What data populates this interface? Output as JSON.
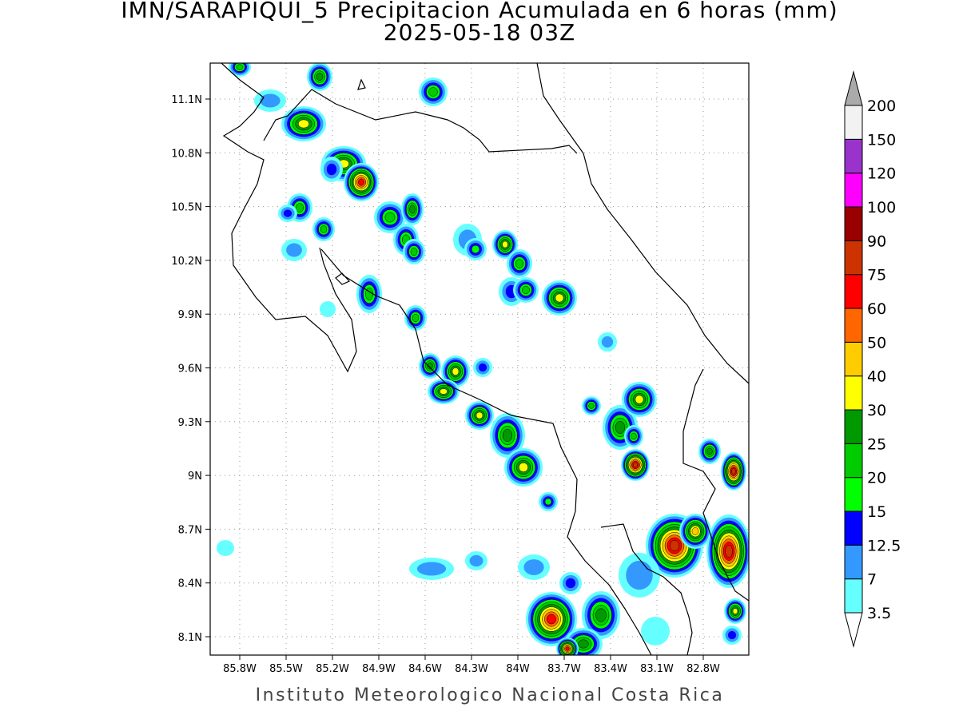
{
  "header": {
    "title": "IMN/SARAPIQUI_5 Precipitacion Acumulada en 6 horas (mm)",
    "subtitle": "2025-05-18 03Z"
  },
  "map": {
    "lat_labels": [
      "11.1N",
      "10.8N",
      "10.5N",
      "10.2N",
      "9.9N",
      "9.6N",
      "9.3N",
      "9N",
      "8.7N",
      "8.4N",
      "8.1N"
    ],
    "lon_labels": [
      "85.8W",
      "85.5W",
      "85.2W",
      "84.9W",
      "84.6W",
      "84.3W",
      "84W",
      "83.7W",
      "83.4W",
      "83.1W",
      "82.8W"
    ]
  },
  "colorbar": {
    "levels": [
      3.5,
      7,
      12.5,
      15,
      20,
      25,
      30,
      40,
      50,
      60,
      75,
      90,
      100,
      120,
      150,
      200
    ],
    "colors": [
      "#66ffff",
      "#3399ff",
      "#0000ff",
      "#00ff00",
      "#00cc00",
      "#009900",
      "#ffff00",
      "#ffcc00",
      "#ff6600",
      "#ff0000",
      "#cc3300",
      "#990000",
      "#ff00ff",
      "#9933cc",
      "#f2f2f2"
    ],
    "under_color": "#ffffff",
    "over_color": "#aaaaaa"
  },
  "footer": "Instituto Meteorologico Nacional Costa Rica"
}
